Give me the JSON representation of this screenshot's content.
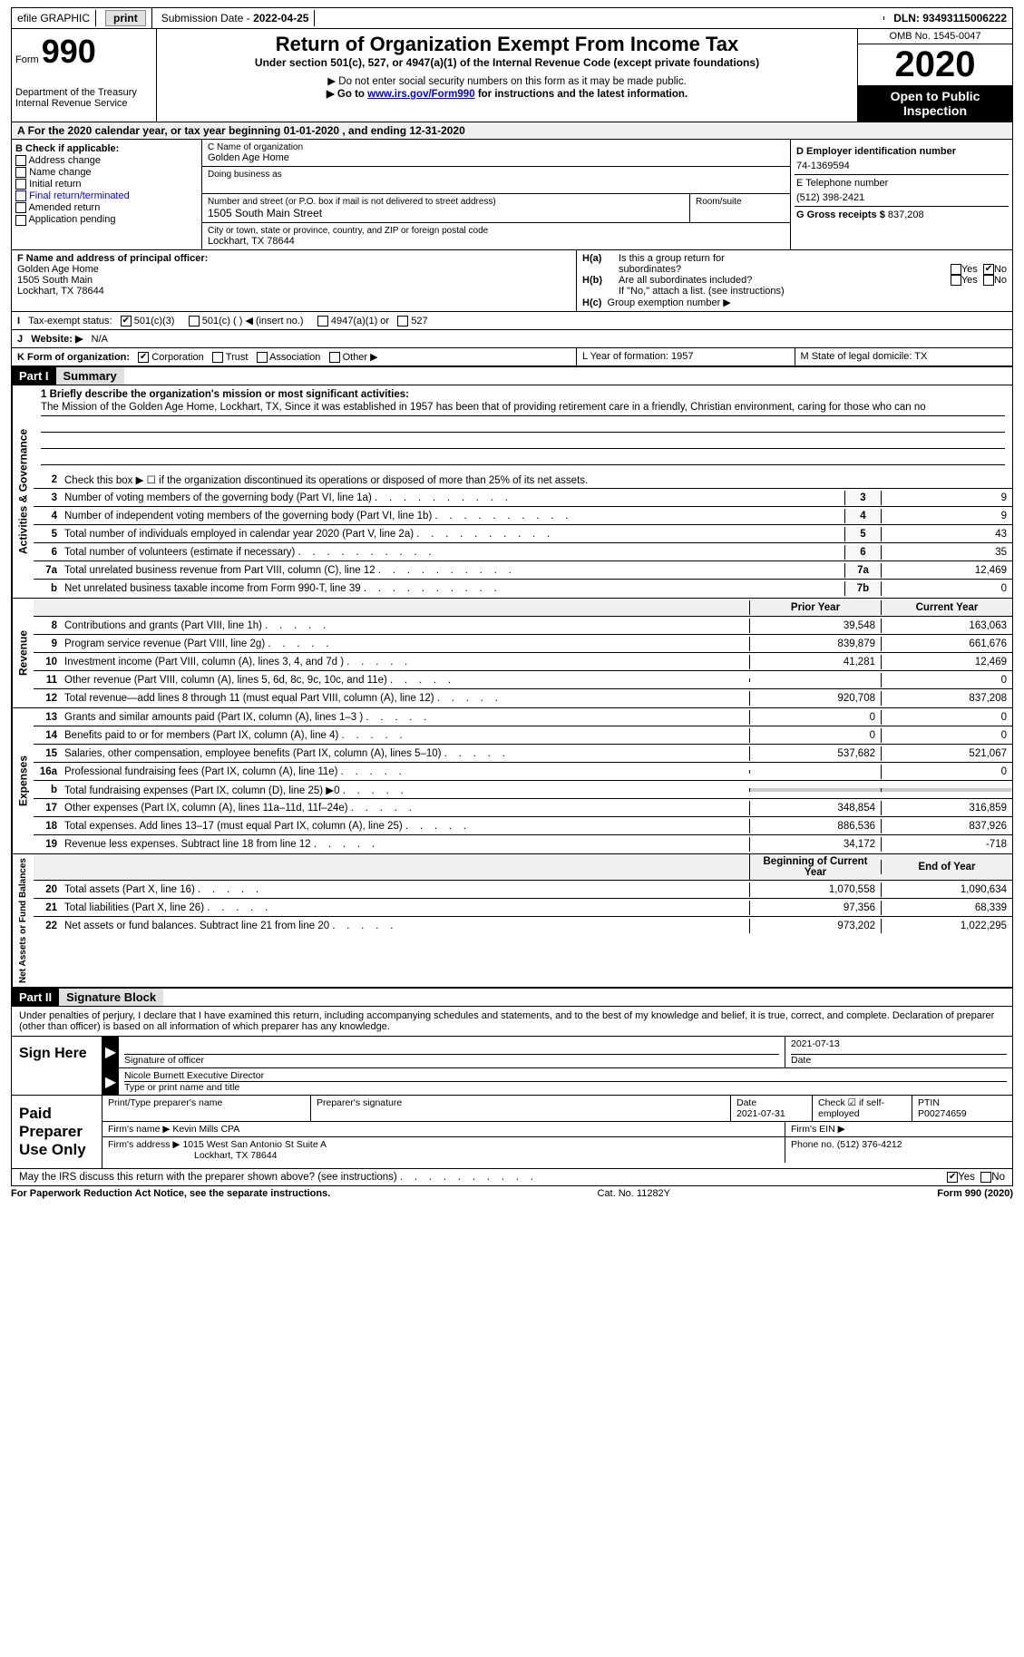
{
  "topbar": {
    "efile_label": "efile GRAPHIC",
    "print_btn": "print",
    "submission_label": "Submission Date - ",
    "submission_date": "2022-04-25",
    "dln_label": "DLN: ",
    "dln": "93493115006222"
  },
  "header": {
    "form_word": "Form",
    "form_num": "990",
    "dept": "Department of the Treasury\nInternal Revenue Service",
    "title": "Return of Organization Exempt From Income Tax",
    "subtitle": "Under section 501(c), 527, or 4947(a)(1) of the Internal Revenue Code (except private foundations)",
    "note1": "▶ Do not enter social security numbers on this form as it may be made public.",
    "note2_pre": "▶ Go to ",
    "note2_link": "www.irs.gov/Form990",
    "note2_post": " for instructions and the latest information.",
    "omb": "OMB No. 1545-0047",
    "year": "2020",
    "inspect": "Open to Public Inspection"
  },
  "period": "For the 2020 calendar year, or tax year beginning 01-01-2020    , and ending 12-31-2020",
  "section_b": {
    "label": "B Check if applicable:",
    "items": [
      "Address change",
      "Name change",
      "Initial return",
      "Final return/terminated",
      "Amended return",
      "Application pending"
    ]
  },
  "section_c": {
    "name_label": "C Name of organization",
    "org_name": "Golden Age Home",
    "dba_label": "Doing business as",
    "addr_label": "Number and street (or P.O. box if mail is not delivered to street address)",
    "room_label": "Room/suite",
    "street": "1505 South Main Street",
    "city_label": "City or town, state or province, country, and ZIP or foreign postal code",
    "city": "Lockhart, TX   78644"
  },
  "section_d": {
    "ein_label": "D Employer identification number",
    "ein": "74-1369594",
    "phone_label": "E Telephone number",
    "phone": "(512) 398-2421",
    "gross_label": "G Gross receipts $ ",
    "gross": "837,208"
  },
  "section_f": {
    "label": "F  Name and address of principal officer:",
    "name": "Golden Age Home",
    "addr1": "1505 South Main",
    "addr2": "Lockhart, TX   78644"
  },
  "section_h": {
    "ha_label": "Is this a group return for",
    "ha_sub": "subordinates?",
    "hb_label": "Are all subordinates included?",
    "hb_note": "If \"No,\" attach a list. (see instructions)",
    "hc_label": "Group exemption number ▶",
    "yes": "Yes",
    "no": "No"
  },
  "tax_status": {
    "label": "Tax-exempt status:",
    "opt1": "501(c)(3)",
    "opt2": "501(c) (  ) ◀ (insert no.)",
    "opt3": "4947(a)(1) or",
    "opt4": "527"
  },
  "website": {
    "label": "Website: ▶",
    "value": "N/A"
  },
  "section_k": {
    "label": "K Form of organization:",
    "opts": [
      "Corporation",
      "Trust",
      "Association",
      "Other ▶"
    ]
  },
  "section_lm": {
    "l": "L Year of formation: 1957",
    "m": "M State of legal domicile: TX"
  },
  "part1": {
    "header": "Part I",
    "title": "Summary"
  },
  "mission": {
    "q1": "1  Briefly describe the organization's mission or most significant activities:",
    "text": "The Mission of the Golden Age Home, Lockhart, TX, Since it was established in 1957 has been that of providing retirement care in a friendly, Christian environment, caring for those who can no"
  },
  "governance": {
    "vlabel": "Activities & Governance",
    "q2": "Check this box ▶ ☐  if the organization discontinued its operations or disposed of more than 25% of its net assets.",
    "rows": [
      {
        "n": "3",
        "d": "Number of voting members of the governing body (Part VI, line 1a)",
        "box": "3",
        "v": "9"
      },
      {
        "n": "4",
        "d": "Number of independent voting members of the governing body (Part VI, line 1b)",
        "box": "4",
        "v": "9"
      },
      {
        "n": "5",
        "d": "Total number of individuals employed in calendar year 2020 (Part V, line 2a)",
        "box": "5",
        "v": "43"
      },
      {
        "n": "6",
        "d": "Total number of volunteers (estimate if necessary)",
        "box": "6",
        "v": "35"
      },
      {
        "n": "7a",
        "d": "Total unrelated business revenue from Part VIII, column (C), line 12",
        "box": "7a",
        "v": "12,469"
      },
      {
        "n": "b",
        "d": "Net unrelated business taxable income from Form 990-T, line 39",
        "box": "7b",
        "v": "0"
      }
    ]
  },
  "col_headers": {
    "prior": "Prior Year",
    "current": "Current Year"
  },
  "revenue": {
    "vlabel": "Revenue",
    "rows": [
      {
        "n": "8",
        "d": "Contributions and grants (Part VIII, line 1h)",
        "p": "39,548",
        "c": "163,063"
      },
      {
        "n": "9",
        "d": "Program service revenue (Part VIII, line 2g)",
        "p": "839,879",
        "c": "661,676"
      },
      {
        "n": "10",
        "d": "Investment income (Part VIII, column (A), lines 3, 4, and 7d )",
        "p": "41,281",
        "c": "12,469"
      },
      {
        "n": "11",
        "d": "Other revenue (Part VIII, column (A), lines 5, 6d, 8c, 9c, 10c, and 11e)",
        "p": "",
        "c": "0"
      },
      {
        "n": "12",
        "d": "Total revenue—add lines 8 through 11 (must equal Part VIII, column (A), line 12)",
        "p": "920,708",
        "c": "837,208"
      }
    ]
  },
  "expenses": {
    "vlabel": "Expenses",
    "rows": [
      {
        "n": "13",
        "d": "Grants and similar amounts paid (Part IX, column (A), lines 1–3 )",
        "p": "0",
        "c": "0"
      },
      {
        "n": "14",
        "d": "Benefits paid to or for members (Part IX, column (A), line 4)",
        "p": "0",
        "c": "0"
      },
      {
        "n": "15",
        "d": "Salaries, other compensation, employee benefits (Part IX, column (A), lines 5–10)",
        "p": "537,682",
        "c": "521,067"
      },
      {
        "n": "16a",
        "d": "Professional fundraising fees (Part IX, column (A), line 11e)",
        "p": "",
        "c": "0"
      },
      {
        "n": "b",
        "d": "Total fundraising expenses (Part IX, column (D), line 25) ▶0",
        "p": "SHADE",
        "c": "SHADE"
      },
      {
        "n": "17",
        "d": "Other expenses (Part IX, column (A), lines 11a–11d, 11f–24e)",
        "p": "348,854",
        "c": "316,859"
      },
      {
        "n": "18",
        "d": "Total expenses. Add lines 13–17 (must equal Part IX, column (A), line 25)",
        "p": "886,536",
        "c": "837,926"
      },
      {
        "n": "19",
        "d": "Revenue less expenses. Subtract line 18 from line 12",
        "p": "34,172",
        "c": "-718"
      }
    ]
  },
  "netassets": {
    "vlabel": "Net Assets or Fund Balances",
    "col_headers": {
      "begin": "Beginning of Current Year",
      "end": "End of Year"
    },
    "rows": [
      {
        "n": "20",
        "d": "Total assets (Part X, line 16)",
        "p": "1,070,558",
        "c": "1,090,634"
      },
      {
        "n": "21",
        "d": "Total liabilities (Part X, line 26)",
        "p": "97,356",
        "c": "68,339"
      },
      {
        "n": "22",
        "d": "Net assets or fund balances. Subtract line 21 from line 20",
        "p": "973,202",
        "c": "1,022,295"
      }
    ]
  },
  "part2": {
    "header": "Part II",
    "title": "Signature Block",
    "declaration": "Under penalties of perjury, I declare that I have examined this return, including accompanying schedules and statements, and to the best of my knowledge and belief, it is true, correct, and complete. Declaration of preparer (other than officer) is based on all information of which preparer has any knowledge."
  },
  "sign_here": {
    "label": "Sign Here",
    "sig_label": "Signature of officer",
    "date": "2021-07-13",
    "date_label": "Date",
    "name": "Nicole Burnett  Executive Director",
    "name_label": "Type or print name and title"
  },
  "preparer": {
    "label": "Paid Preparer Use Only",
    "name_label": "Print/Type preparer's name",
    "sig_label": "Preparer's signature",
    "date_label": "Date",
    "date": "2021-07-31",
    "check_label": "Check ☑ if self-employed",
    "ptin_label": "PTIN",
    "ptin": "P00274659",
    "firm_name_label": "Firm's name    ▶",
    "firm_name": "Kevin Mills CPA",
    "firm_ein_label": "Firm's EIN ▶",
    "firm_addr_label": "Firm's address ▶",
    "firm_addr": "1015 West San Antonio St Suite A",
    "firm_city": "Lockhart, TX   78644",
    "firm_phone_label": "Phone no. ",
    "firm_phone": "(512) 376-4212"
  },
  "discuss": "May the IRS discuss this return with the preparer shown above? (see instructions)",
  "footer": {
    "left": "For Paperwork Reduction Act Notice, see the separate instructions.",
    "mid": "Cat. No. 11282Y",
    "right": "Form 990 (2020)"
  }
}
